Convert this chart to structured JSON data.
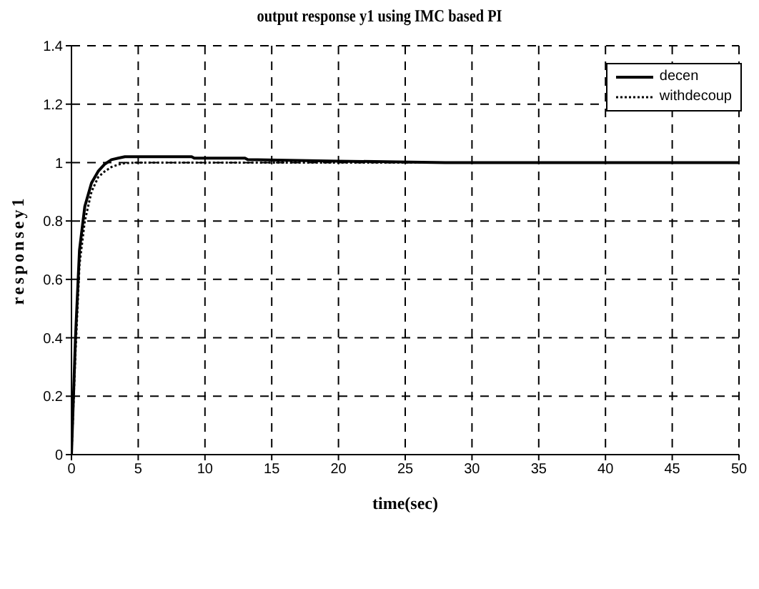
{
  "chart_data": {
    "type": "line",
    "title": "output response y1 using IMC based PI",
    "xlabel": "time(sec)",
    "ylabel": "responsey1",
    "xlim": [
      0,
      50
    ],
    "xticks": [
      0,
      5,
      10,
      15,
      20,
      25,
      30,
      35,
      40,
      45,
      50
    ],
    "ylim": [
      0,
      1.4
    ],
    "yticks": [
      0,
      0.2,
      0.4,
      0.6,
      0.8,
      1,
      1.2,
      1.4
    ],
    "grid": true,
    "legend": "top right",
    "marker": "none",
    "series": [
      {
        "name": "decen",
        "color": "#000000",
        "line_style": "solid",
        "x": [
          0,
          0.3,
          0.6,
          1,
          1.5,
          2,
          2.5,
          3,
          3.5,
          4,
          6,
          9,
          9.2,
          13,
          13.2,
          20,
          28,
          35,
          50
        ],
        "values": [
          0,
          0.4,
          0.7,
          0.85,
          0.93,
          0.97,
          0.995,
          1.01,
          1.015,
          1.02,
          1.02,
          1.02,
          1.015,
          1.015,
          1.01,
          1.005,
          1,
          1,
          1
        ]
      },
      {
        "name": "withdecoup",
        "color": "#000000",
        "line_style": "dotted",
        "x": [
          0,
          0.3,
          0.6,
          1,
          1.5,
          2,
          2.5,
          3,
          3.5,
          4,
          5,
          10,
          20,
          35,
          50
        ],
        "values": [
          0,
          0.35,
          0.65,
          0.8,
          0.9,
          0.95,
          0.97,
          0.985,
          0.993,
          0.998,
          1,
          1,
          1,
          1,
          1
        ]
      }
    ]
  }
}
